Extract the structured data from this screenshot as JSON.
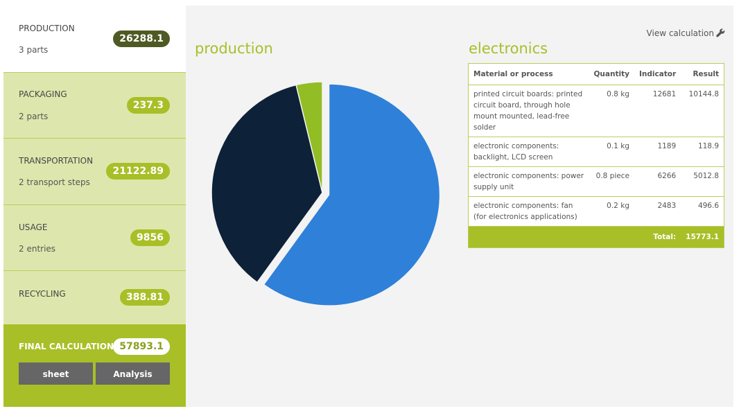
{
  "sidebar": {
    "production": {
      "title": "PRODUCTION",
      "sub": "3 parts",
      "value": "26288.1"
    },
    "packaging": {
      "title": "PACKAGING",
      "sub": "2 parts",
      "value": "237.3"
    },
    "transportation": {
      "title": "TRANSPORTATION",
      "sub": "2 transport steps",
      "value": "21122.89"
    },
    "usage": {
      "title": "USAGE",
      "sub": "2 entries",
      "value": "9856"
    },
    "recycling": {
      "title": "RECYCLING",
      "value": "388.81"
    },
    "final": {
      "title": "FINAL CALCULATION",
      "value": "57893.1",
      "sheet_label": "sheet",
      "analysis_label": "Analysis"
    }
  },
  "main": {
    "production_heading": "production",
    "electronics_heading": "electronics",
    "view_calc_label": "View calculation",
    "view_calc_icon": "wrench-icon"
  },
  "table": {
    "headers": [
      "Material or process",
      "Quantity",
      "Indicator",
      "Result"
    ],
    "rows": [
      {
        "material": "printed circuit boards: printed circuit board, through hole mount mounted, lead-free solder",
        "quantity": "0.8 kg",
        "indicator": "12681",
        "result": "10144.8"
      },
      {
        "material": "electronic components: backlight, LCD screen",
        "quantity": "0.1 kg",
        "indicator": "1189",
        "result": "118.9"
      },
      {
        "material": "electronic components: power supply unit",
        "quantity": "0.8 piece",
        "indicator": "6266",
        "result": "5012.8"
      },
      {
        "material": "electronic components: fan (for electronics applications)",
        "quantity": "0.2 kg",
        "indicator": "2483",
        "result": "496.6"
      }
    ],
    "total_label": "Total:",
    "total_value": "15773.1"
  },
  "chart_data": {
    "type": "pie",
    "title": "",
    "slices": [
      {
        "value": 15773.1,
        "color": "#2f80d9",
        "exploded": true
      },
      {
        "value": 9515.0,
        "color": "#0d2138",
        "exploded": false
      },
      {
        "value": 1000.0,
        "color": "#92bd24",
        "exploded": false
      }
    ]
  },
  "colors": {
    "accent": "#a8bf27",
    "dark_pill": "#4e5a23",
    "light_section": "#dde7ad",
    "button": "#666666"
  }
}
